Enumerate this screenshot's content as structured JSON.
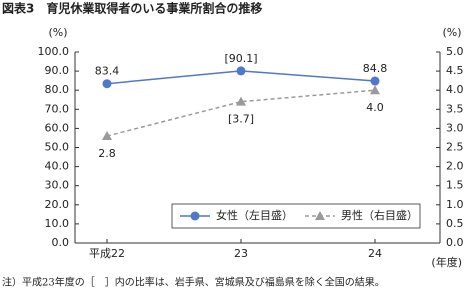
{
  "chart_data": {
    "type": "line",
    "title": "図表3　育児休業取得者のいる事業所割合の推移",
    "y_unit": "(%)",
    "y2_unit": "(%)",
    "x_unit": "(年度)",
    "note": "注）平成23年度の［　］内の比率は、岩手県、宮城県及び福島県を除く全国の結果。",
    "categories": [
      "平成22",
      "23",
      "24"
    ],
    "series": [
      {
        "name": "女性（左目盛）",
        "color": "#4f78c8",
        "marker": "circle",
        "dash": false,
        "values": [
          83.4,
          90.1,
          84.8
        ],
        "value_labels": [
          "83.4",
          "[90.1]",
          "84.8"
        ]
      },
      {
        "name": "男性（右目盛）",
        "color": "#9a9a9a",
        "marker": "triangle",
        "dash": true,
        "axis": "y2",
        "values": [
          2.8,
          3.7,
          4.0
        ],
        "value_labels": [
          "2.8",
          "[3.7]",
          "4.0"
        ]
      }
    ],
    "ylim": [
      0,
      100
    ],
    "yticks": [
      {
        "value": 0,
        "label": "0.0"
      },
      {
        "value": 10,
        "label": "10.0"
      },
      {
        "value": 20,
        "label": "20.0"
      },
      {
        "value": 30,
        "label": "30.0"
      },
      {
        "value": 40,
        "label": "40.0"
      },
      {
        "value": 50,
        "label": "50.0"
      },
      {
        "value": 60,
        "label": "60.0"
      },
      {
        "value": 70,
        "label": "70.0"
      },
      {
        "value": 80,
        "label": "80.0"
      },
      {
        "value": 90,
        "label": "90.0"
      },
      {
        "value": 100,
        "label": "100.0"
      }
    ],
    "y2lim": [
      0,
      5
    ],
    "y2ticks": [
      {
        "value": 0,
        "label": "0.0"
      },
      0.5,
      {
        "value": 1,
        "label": "1.0"
      },
      1.5,
      {
        "value": 2,
        "label": "2.0"
      },
      2.5,
      {
        "value": 3,
        "label": "3.0"
      },
      3.5,
      {
        "value": 4,
        "label": "4.0"
      },
      4.5,
      {
        "value": 5,
        "label": "5.0"
      }
    ],
    "grid": false
  }
}
